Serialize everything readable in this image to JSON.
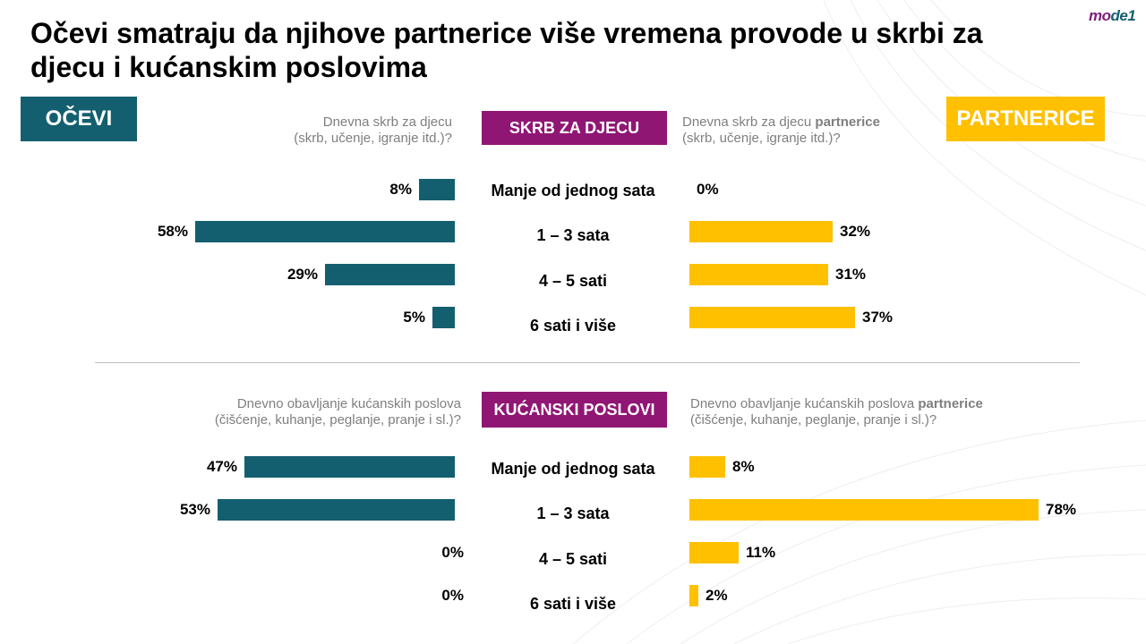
{
  "title": "Očevi smatraju da njihove partnerice više vremena provode u skrbi za djecu i kućanskim poslovima",
  "logo": {
    "part1": "mo",
    "part2": "de1"
  },
  "left_tag": "OČEVI",
  "right_tag": "PARTNERICE",
  "colors": {
    "fathers": "#145f6f",
    "partners": "#ffc000",
    "section_tag": "#901674"
  },
  "sections": [
    {
      "tag": "SKRB ZA DJECU",
      "left_question_line1": "Dnevna skrb za djecu",
      "left_question_line2": "(skrb, učenje, igranje itd.)?",
      "right_question_pre": "Dnevna skrb za djecu",
      "right_question_bold": "partnerice",
      "right_question_line2": "(skrb, učenje, igranje itd.)?"
    },
    {
      "tag": "KUĆANSKI POSLOVI",
      "left_question_line1": "Dnevno obavljanje kućanskih poslova",
      "left_question_line2": "(čišćenje, kuhanje, peglanje, pranje i sl.)?",
      "right_question_pre": "Dnevno obavljanje kućanskih poslova",
      "right_question_bold": "partnerice",
      "right_question_line2": "(čišćenje, kuhanje, peglanje, pranje i sl.)?"
    }
  ],
  "chart_data": [
    {
      "type": "bar",
      "categories": [
        "Manje od jednog sata",
        "1 – 3 sata",
        "4 – 5 sati",
        "6 sati i više"
      ],
      "series": [
        {
          "name": "OČEVI",
          "values": [
            8,
            58,
            29,
            5
          ],
          "labels": [
            "8%",
            "58%",
            "29%",
            "5%"
          ]
        },
        {
          "name": "PARTNERICE",
          "values": [
            0,
            32,
            31,
            37
          ],
          "labels": [
            "0%",
            "32%",
            "31%",
            "37%"
          ]
        }
      ]
    },
    {
      "type": "bar",
      "categories": [
        "Manje od jednog sata",
        "1 – 3 sata",
        "4 – 5 sati",
        "6 sati i više"
      ],
      "series": [
        {
          "name": "OČEVI",
          "values": [
            47,
            53,
            0,
            0
          ],
          "labels": [
            "47%",
            "53%",
            "0%",
            "0%"
          ]
        },
        {
          "name": "PARTNERICE",
          "values": [
            8,
            78,
            11,
            2
          ],
          "labels": [
            "8%",
            "78%",
            "11%",
            "2%"
          ]
        }
      ]
    }
  ]
}
